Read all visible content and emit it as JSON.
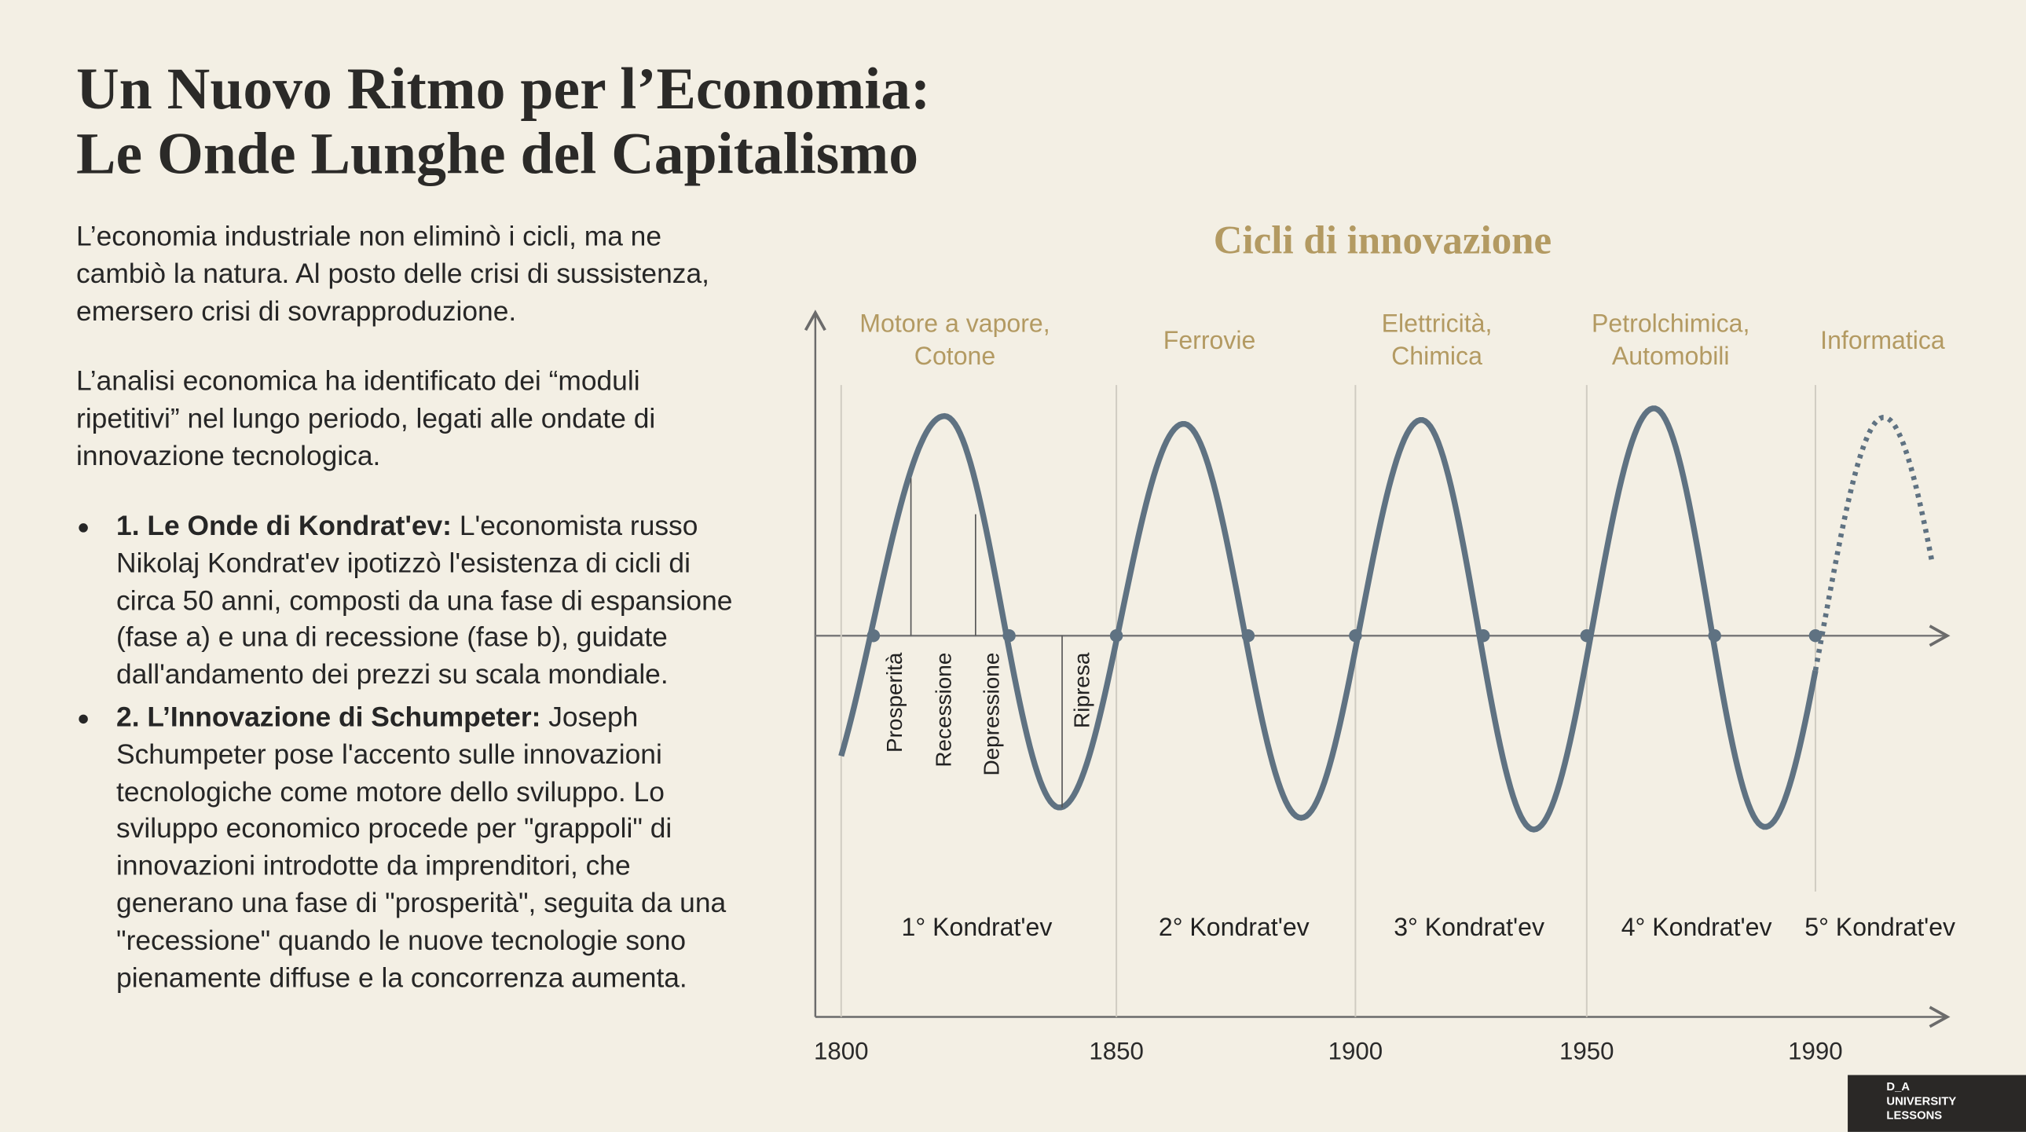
{
  "header": {
    "title_lines": [
      "Un Nuovo Ritmo per l’Economia:",
      "Le Onde Lunghe del Capitalismo"
    ]
  },
  "paragraphs": [
    "L’economia industriale non eliminò i cicli, ma ne cambiò la natura. Al posto delle crisi di sussistenza, emersero crisi di sovrapproduzione.",
    "L’analisi economica ha identificato dei “moduli ripetitivi” nel lungo periodo, legati alle ondate di innovazione tecnologica."
  ],
  "bullets": [
    {
      "lead": "1. Le Onde di Kondrat'ev:",
      "text": "L'economista russo Nikolaj Kondrat'ev ipotizzò l'esistenza di cicli di circa 50 anni, composti da una fase di espansione (fase a) e una di recessione (fase b), guidate dall'andamento dei prezzi su scala mondiale."
    },
    {
      "lead": "2. L’Innovazione di Schumpeter:",
      "text": "Joseph Schumpeter pose l'accento sulle innovazioni tecnologiche come motore dello sviluppo. Lo sviluppo economico procede per \"grappoli\" di innovazioni introdotte da imprenditori, che generano una fase di \"prosperità\", seguita da una \"recessione\" quando le nuove tecnologie sono pienamente diffuse e la concorrenza aumenta."
    }
  ],
  "diagram": {
    "title": "Cicli di innovazione",
    "innovations": [
      [
        "Motore a vapore,",
        "Cotone"
      ],
      [
        "Ferrovie"
      ],
      [
        "Elettricità,",
        "Chimica"
      ],
      [
        "Petrolchimica,",
        "Automobili"
      ],
      [
        "Informatica"
      ]
    ],
    "phases": [
      "Prosperità",
      "Recessione",
      "Depressione",
      "Ripresa"
    ],
    "cycles": [
      "1° Kondrat'ev",
      "2° Kondrat'ev",
      "3° Kondrat'ev",
      "4° Kondrat'ev",
      "5° Kondrat'ev"
    ],
    "years": [
      "1800",
      "1850",
      "1900",
      "1950",
      "1990"
    ]
  },
  "logo": [
    "D_A",
    "UNIVERSITY",
    "LESSONS"
  ]
}
